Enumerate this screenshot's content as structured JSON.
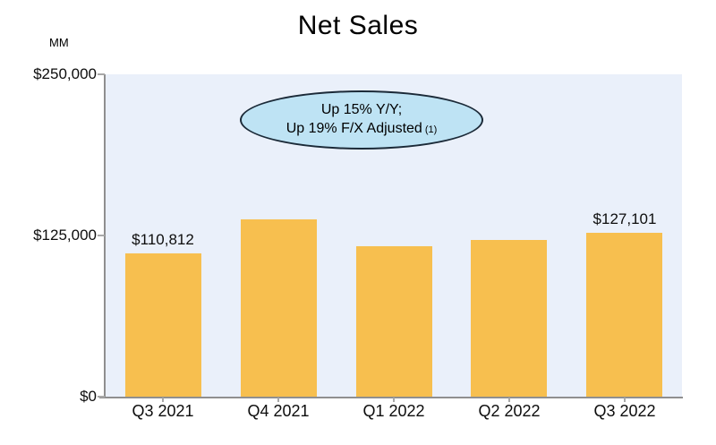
{
  "header": {
    "title": "Net Sales",
    "unit_label": "MM"
  },
  "callout": {
    "line1": "Up 15% Y/Y;",
    "line2": "Up 19% F/X Adjusted",
    "footnote_marker": "(1)",
    "fill": "#BEE3F4",
    "stroke": "#1B2A38"
  },
  "chart_data": {
    "type": "bar",
    "title": "Net Sales",
    "unit": "MM",
    "categories": [
      "Q3 2021",
      "Q4 2021",
      "Q1 2022",
      "Q2 2022",
      "Q3 2022"
    ],
    "values": [
      110812,
      137412,
      116444,
      121234,
      127101
    ],
    "value_labels": [
      "$110,812",
      "",
      "",
      "",
      "$127,101"
    ],
    "xlabel": "",
    "ylabel": "MM",
    "ylim": [
      0,
      250000
    ],
    "yticks": [
      {
        "value": 0,
        "label": "$0"
      },
      {
        "value": 125000,
        "label": "$125,000"
      },
      {
        "value": 250000,
        "label": "$250,000"
      }
    ],
    "grid": false,
    "legend": "none",
    "annotation": "Up 15% Y/Y; Up 19% F/X Adjusted (1)",
    "bar_color": "#F7BF4F",
    "plot_background": "#EAF0FA",
    "axis_color": "#8F8F8F",
    "tick_color": "#A8A8A8",
    "text_color": "#0D0D0D"
  }
}
